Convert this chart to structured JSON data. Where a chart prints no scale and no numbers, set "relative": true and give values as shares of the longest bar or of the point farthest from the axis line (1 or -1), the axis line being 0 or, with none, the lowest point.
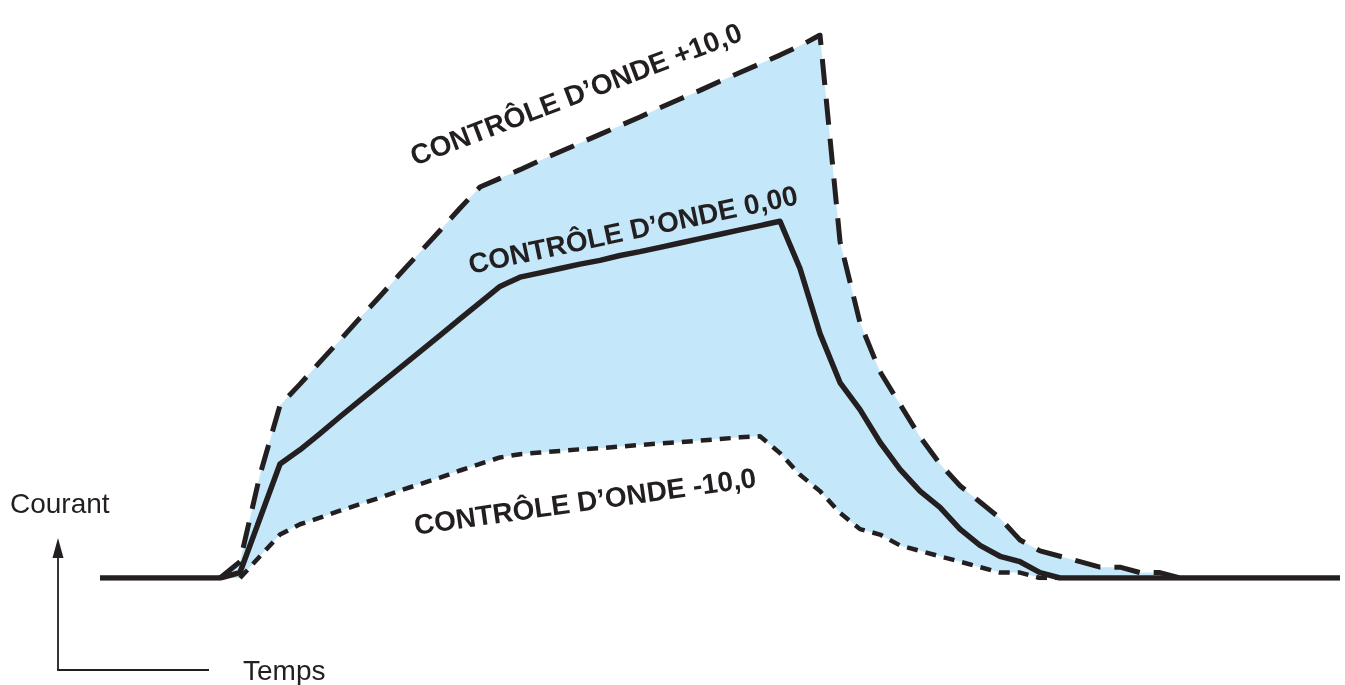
{
  "chart_data": {
    "type": "line",
    "relative": true,
    "xlabel": "Temps",
    "ylabel": "Courant",
    "marker": "none",
    "categories": [
      null,
      null,
      null,
      null,
      null,
      null,
      null,
      null,
      null,
      null,
      null,
      null,
      null,
      null,
      null,
      null,
      null,
      null,
      null,
      null,
      null,
      null,
      null,
      null,
      null,
      null,
      null,
      null,
      null,
      null,
      null,
      null,
      null,
      null,
      null,
      null,
      null,
      null,
      null,
      null,
      null,
      null,
      null,
      null,
      null,
      null,
      null,
      null,
      null,
      null,
      null,
      null,
      null,
      null,
      null,
      null,
      null,
      null,
      null,
      null,
      null,
      null,
      null
    ],
    "series": [
      {
        "name": "CONTRÔLE D’ONDE +10,0",
        "color": "#231f20",
        "line_style": "dashed",
        "values": [
          null,
          null,
          null,
          null,
          null,
          null,
          0,
          0.03,
          0.19,
          0.318,
          0.357,
          0.398,
          0.438,
          0.479,
          0.519,
          0.56,
          0.6,
          0.64,
          0.681,
          0.72,
          0.736,
          0.752,
          0.769,
          0.785,
          0.801,
          0.817,
          0.833,
          0.849,
          0.866,
          0.882,
          0.898,
          0.915,
          0.931,
          0.947,
          0.963,
          0.98,
          1,
          0.62,
          0.47,
          0.38,
          0.32,
          0.26,
          0.21,
          0.17,
          0.14,
          0.11,
          0.07,
          0.05,
          0.04,
          0.03,
          0.02,
          0.02,
          0.01,
          0.01,
          0,
          null,
          null,
          null,
          null,
          null,
          null,
          null,
          null
        ]
      },
      {
        "name": "CONTRÔLE D’ONDE 0,00",
        "color": "#231f20",
        "line_style": "solid",
        "values": [
          0,
          0,
          0,
          0,
          0,
          0,
          0,
          0.01,
          0.11,
          0.21,
          0.236,
          0.266,
          0.297,
          0.327,
          0.357,
          0.387,
          0.417,
          0.447,
          0.477,
          0.507,
          0.537,
          0.554,
          0.562,
          0.57,
          0.578,
          0.585,
          0.594,
          0.601,
          0.609,
          0.617,
          0.625,
          0.633,
          0.641,
          0.649,
          0.657,
          0.57,
          0.45,
          0.36,
          0.31,
          0.25,
          0.2,
          0.16,
          0.13,
          0.09,
          0.06,
          0.04,
          0.03,
          0.01,
          0,
          0,
          0,
          0,
          0,
          0,
          0,
          0,
          0,
          0,
          0,
          0,
          0,
          0,
          0
        ],
        "upper": [
          null,
          null,
          null,
          null,
          null,
          null,
          0,
          0.03,
          0.19,
          0.318,
          0.357,
          0.398,
          0.438,
          0.479,
          0.519,
          0.56,
          0.6,
          0.64,
          0.681,
          0.72,
          0.736,
          0.752,
          0.769,
          0.785,
          0.801,
          0.817,
          0.833,
          0.849,
          0.866,
          0.882,
          0.898,
          0.915,
          0.931,
          0.947,
          0.963,
          0.98,
          1,
          0.62,
          0.47,
          0.38,
          0.32,
          0.26,
          0.21,
          0.17,
          0.14,
          0.11,
          0.07,
          0.05,
          0.04,
          0.03,
          0.02,
          0.02,
          0.01,
          0.01,
          0,
          null,
          null,
          null,
          null,
          null,
          null,
          null,
          null
        ],
        "lower": [
          null,
          null,
          null,
          null,
          null,
          null,
          0,
          0,
          0.04,
          0.08,
          0.099,
          0.111,
          0.124,
          0.136,
          0.148,
          0.161,
          0.173,
          0.185,
          0.198,
          0.21,
          0.222,
          0.228,
          0.231,
          0.234,
          0.237,
          0.239,
          0.242,
          0.245,
          0.248,
          0.25,
          0.253,
          0.256,
          0.259,
          0.261,
          0.23,
          0.19,
          0.16,
          0.12,
          0.09,
          0.08,
          0.06,
          0.05,
          0.04,
          0.03,
          0.02,
          0.01,
          0.01,
          0,
          0,
          0,
          0,
          0,
          0,
          0,
          0,
          null,
          null,
          null,
          null,
          null,
          null,
          null,
          null
        ]
      },
      {
        "name": "CONTRÔLE D’ONDE -10,0",
        "color": "#231f20",
        "line_style": "dotted",
        "values": [
          null,
          null,
          null,
          null,
          null,
          null,
          null,
          0,
          0.04,
          0.08,
          0.099,
          0.111,
          0.124,
          0.136,
          0.148,
          0.161,
          0.173,
          0.185,
          0.198,
          0.21,
          0.222,
          0.228,
          0.231,
          0.234,
          0.237,
          0.239,
          0.242,
          0.245,
          0.248,
          0.25,
          0.253,
          0.256,
          0.259,
          0.261,
          0.23,
          0.19,
          0.16,
          0.12,
          0.09,
          0.08,
          0.06,
          0.05,
          0.04,
          0.03,
          0.02,
          0.01,
          0.01,
          0,
          0,
          null,
          null,
          null,
          null,
          null,
          null,
          null,
          null,
          null,
          null,
          null,
          null,
          null,
          null
        ]
      }
    ]
  }
}
